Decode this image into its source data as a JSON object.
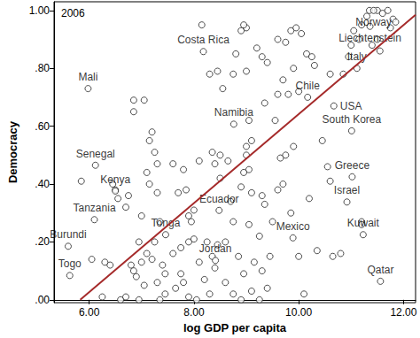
{
  "chart_data": {
    "type": "scatter",
    "title": "2006",
    "x_label": "log GDP per capita",
    "y_label": "Democracy",
    "color": "#222222",
    "marker": "hollow",
    "grid": false,
    "xlim": [
      5.33,
      12.23
    ],
    "ylim": [
      -0.01,
      1.03
    ],
    "xticks": [
      {
        "value": 6,
        "label": "6.00"
      },
      {
        "value": 8,
        "label": "8.00"
      },
      {
        "value": 10,
        "label": "10.00"
      },
      {
        "value": 12,
        "label": "12.00"
      }
    ],
    "yticks": [
      {
        "value": 0,
        "label": ".00"
      },
      {
        "value": 0.2,
        "label": ".20"
      },
      {
        "value": 0.4,
        "label": ".40"
      },
      {
        "value": 0.6,
        "label": ".60"
      },
      {
        "value": 0.8,
        "label": ".80"
      },
      {
        "value": 1,
        "label": "1.00"
      }
    ],
    "values": [
      [
        5.85,
        0.41
      ],
      [
        6.05,
        0.14
      ],
      [
        6.25,
        0.01
      ],
      [
        6.4,
        0.12
      ],
      [
        6.45,
        0.4
      ],
      [
        6.5,
        0.38
      ],
      [
        6.55,
        0.35
      ],
      [
        6.7,
        0.32
      ],
      [
        6.75,
        0.36
      ],
      [
        6.6,
        0.0
      ],
      [
        6.7,
        0.01
      ],
      [
        6.3,
        0.13
      ],
      [
        6.85,
        0.69
      ],
      [
        7.05,
        0.69
      ],
      [
        6.85,
        0.65
      ],
      [
        7.15,
        0.55
      ],
      [
        7.2,
        0.58
      ],
      [
        7.25,
        0.51
      ],
      [
        7.3,
        0.47
      ],
      [
        7.1,
        0.44
      ],
      [
        7.15,
        0.4
      ],
      [
        7.3,
        0.37
      ],
      [
        7.35,
        0.27
      ],
      [
        7.0,
        0.29
      ],
      [
        6.95,
        0.2
      ],
      [
        6.8,
        0.12
      ],
      [
        6.85,
        0.1
      ],
      [
        6.9,
        0.08
      ],
      [
        7.0,
        0.13
      ],
      [
        7.05,
        0.05
      ],
      [
        7.1,
        0.16
      ],
      [
        7.2,
        0.14
      ],
      [
        7.3,
        0.06
      ],
      [
        7.35,
        0.0
      ],
      [
        7.45,
        0.02
      ],
      [
        6.95,
        0.0
      ],
      [
        7.25,
        0.2
      ],
      [
        7.45,
        0.09
      ],
      [
        7.4,
        0.12
      ],
      [
        8.15,
        0.95
      ],
      [
        7.85,
        0.38
      ],
      [
        7.7,
        0.37
      ],
      [
        7.6,
        0.47
      ],
      [
        7.8,
        0.45
      ],
      [
        7.9,
        0.29
      ],
      [
        8.0,
        0.31
      ],
      [
        7.95,
        0.27
      ],
      [
        8.1,
        0.13
      ],
      [
        7.6,
        0.16
      ],
      [
        7.75,
        0.18
      ],
      [
        7.9,
        0.2
      ],
      [
        7.65,
        0.04
      ],
      [
        7.8,
        0.06
      ],
      [
        7.9,
        0.01
      ],
      [
        8.05,
        0.0
      ],
      [
        8.2,
        0.07
      ],
      [
        8.3,
        0.02
      ],
      [
        8.4,
        0.11
      ],
      [
        8.35,
        0.15
      ],
      [
        8.25,
        0.2
      ],
      [
        8.0,
        0.21
      ],
      [
        8.45,
        0.19
      ],
      [
        8.35,
        0.51
      ],
      [
        8.5,
        0.5
      ],
      [
        8.4,
        0.47
      ],
      [
        8.3,
        0.78
      ],
      [
        8.45,
        0.79
      ],
      [
        8.5,
        0.42
      ],
      [
        7.75,
        0.09
      ],
      [
        8.1,
        0.48
      ],
      [
        8.9,
        0.93
      ],
      [
        9.0,
        0.94
      ],
      [
        8.95,
        0.95
      ],
      [
        8.55,
        0.73
      ],
      [
        8.75,
        0.78
      ],
      [
        8.8,
        0.85
      ],
      [
        9.0,
        0.79
      ],
      [
        9.05,
        0.62
      ],
      [
        9.2,
        0.87
      ],
      [
        9.3,
        0.84
      ],
      [
        9.4,
        0.82
      ],
      [
        9.35,
        0.68
      ],
      [
        9.1,
        0.55
      ],
      [
        9.0,
        0.53
      ],
      [
        9.0,
        0.5
      ],
      [
        9.05,
        0.45
      ],
      [
        8.95,
        0.44
      ],
      [
        8.65,
        0.48
      ],
      [
        8.7,
        0.34
      ],
      [
        8.9,
        0.39
      ],
      [
        9.05,
        0.26
      ],
      [
        9.1,
        0.37
      ],
      [
        9.3,
        0.36
      ],
      [
        9.35,
        0.33
      ],
      [
        9.25,
        0.22
      ],
      [
        8.6,
        0.2
      ],
      [
        8.75,
        0.27
      ],
      [
        8.85,
        0.15
      ],
      [
        8.95,
        0.09
      ],
      [
        9.15,
        0.13
      ],
      [
        9.3,
        0.1
      ],
      [
        9.45,
        0.15
      ],
      [
        8.6,
        0.06
      ],
      [
        8.75,
        0.02
      ],
      [
        8.9,
        0.0
      ],
      [
        9.1,
        0.03
      ],
      [
        9.25,
        0.0
      ],
      [
        9.4,
        0.04
      ],
      [
        9.5,
        0.27
      ],
      [
        9.6,
        0.9
      ],
      [
        9.75,
        0.89
      ],
      [
        9.85,
        0.93
      ],
      [
        9.95,
        0.94
      ],
      [
        10.05,
        0.92
      ],
      [
        10.15,
        0.85
      ],
      [
        9.9,
        0.8
      ],
      [
        9.7,
        0.76
      ],
      [
        9.6,
        0.71
      ],
      [
        9.8,
        0.71
      ],
      [
        10.0,
        0.72
      ],
      [
        10.25,
        0.84
      ],
      [
        10.3,
        0.81
      ],
      [
        9.55,
        0.62
      ],
      [
        9.65,
        0.49
      ],
      [
        9.75,
        0.5
      ],
      [
        9.9,
        0.53
      ],
      [
        10.2,
        0.35
      ],
      [
        9.85,
        0.3
      ],
      [
        10.0,
        0.15
      ],
      [
        10.1,
        0.02
      ],
      [
        10.35,
        0.17
      ],
      [
        9.6,
        0.38
      ],
      [
        9.7,
        0.4
      ],
      [
        11.0,
        0.88
      ],
      [
        11.05,
        0.93
      ],
      [
        11.15,
        0.9
      ],
      [
        11.2,
        0.95
      ],
      [
        11.3,
        0.98
      ],
      [
        11.35,
        1.0
      ],
      [
        11.5,
        1.0
      ],
      [
        11.6,
        0.99
      ],
      [
        11.7,
        1.0
      ],
      [
        11.75,
        0.94
      ],
      [
        11.8,
        0.97
      ],
      [
        11.4,
        0.88
      ],
      [
        11.5,
        0.9
      ],
      [
        11.55,
        0.86
      ],
      [
        10.95,
        0.84
      ],
      [
        10.85,
        0.78
      ],
      [
        10.6,
        0.78
      ],
      [
        10.55,
        0.46
      ],
      [
        10.6,
        0.41
      ],
      [
        10.8,
        0.16
      ],
      [
        10.65,
        0.15
      ],
      [
        11.2,
        0.27
      ],
      [
        11.2,
        0.26
      ],
      [
        11.85,
        0.96
      ],
      [
        10.45,
        0.55
      ]
    ],
    "labeled": [
      {
        "label": "Norway",
        "x": 11.43,
        "y": 1.0
      },
      {
        "label": "Liechtenstein",
        "x": 11.36,
        "y": 0.945
      },
      {
        "label": "Costa Rica",
        "x": 8.18,
        "y": 0.858
      },
      {
        "label": "Italy",
        "x": 11.11,
        "y": 0.8
      },
      {
        "label": "Mali",
        "x": 5.98,
        "y": 0.73
      },
      {
        "label": "Chile",
        "x": 10.17,
        "y": 0.7
      },
      {
        "label": "USA",
        "x": 10.67,
        "y": 0.67
      },
      {
        "label": "Namibia",
        "x": 8.76,
        "y": 0.607
      },
      {
        "label": "South Korea",
        "x": 11.01,
        "y": 0.584
      },
      {
        "label": "Senegal",
        "x": 6.12,
        "y": 0.465
      },
      {
        "label": "Greece",
        "x": 11.02,
        "y": 0.425
      },
      {
        "label": "Kenya",
        "x": 6.5,
        "y": 0.376
      },
      {
        "label": "Israel",
        "x": 10.92,
        "y": 0.338
      },
      {
        "label": "Ecuador",
        "x": 8.48,
        "y": 0.309
      },
      {
        "label": "Tanzania",
        "x": 6.1,
        "y": 0.277
      },
      {
        "label": "Tonga",
        "x": 7.46,
        "y": 0.225
      },
      {
        "label": "Mexico",
        "x": 9.89,
        "y": 0.214
      },
      {
        "label": "Kuwait",
        "x": 11.23,
        "y": 0.225
      },
      {
        "label": "Burundi",
        "x": 5.6,
        "y": 0.185
      },
      {
        "label": "Jordan",
        "x": 8.41,
        "y": 0.136
      },
      {
        "label": "Togo",
        "x": 5.63,
        "y": 0.084
      },
      {
        "label": "Qatar",
        "x": 11.56,
        "y": 0.064
      }
    ],
    "fit": {
      "type": "line",
      "x": [
        5.83,
        12.23
      ],
      "y": [
        0.0,
        0.985
      ],
      "color": "#a52a2a"
    }
  }
}
